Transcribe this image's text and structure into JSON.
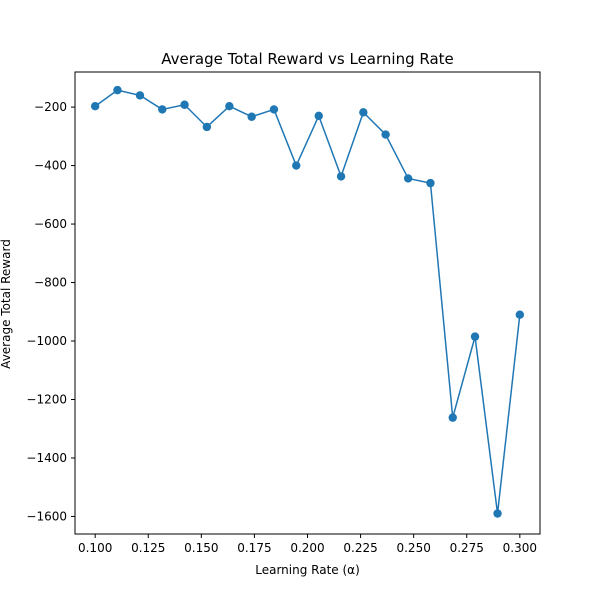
{
  "chart_data": {
    "type": "line",
    "title": "Average Total Reward vs Learning Rate",
    "xlabel": "Learning Rate (α)",
    "ylabel": "Average Total Reward",
    "xlim": [
      0.0905,
      0.3095
    ],
    "ylim": [
      -1660,
      -80
    ],
    "xticks": [
      0.1,
      0.125,
      0.15,
      0.175,
      0.2,
      0.225,
      0.25,
      0.275,
      0.3
    ],
    "xtick_labels": [
      "0.100",
      "0.125",
      "0.150",
      "0.175",
      "0.200",
      "0.225",
      "0.250",
      "0.275",
      "0.300"
    ],
    "yticks": [
      -200,
      -400,
      -600,
      -800,
      -1000,
      -1200,
      -1400,
      -1600
    ],
    "ytick_labels": [
      "−200",
      "−400",
      "−600",
      "−800",
      "−1000",
      "−1200",
      "−1400",
      "−1600"
    ],
    "grid": false,
    "series": [
      {
        "color": "#1f77b4",
        "marker": "circle",
        "x": [
          0.1,
          0.1105,
          0.1211,
          0.1316,
          0.1421,
          0.1526,
          0.1632,
          0.1737,
          0.1842,
          0.1947,
          0.2053,
          0.2158,
          0.2263,
          0.2368,
          0.2474,
          0.2579,
          0.2684,
          0.2789,
          0.2895,
          0.3
        ],
        "y": [
          -197,
          -142,
          -160,
          -208,
          -192,
          -268,
          -197,
          -233,
          -208,
          -400,
          -230,
          -437,
          -218,
          -294,
          -444,
          -460,
          -1262,
          -985,
          -1590,
          -910
        ]
      }
    ]
  }
}
